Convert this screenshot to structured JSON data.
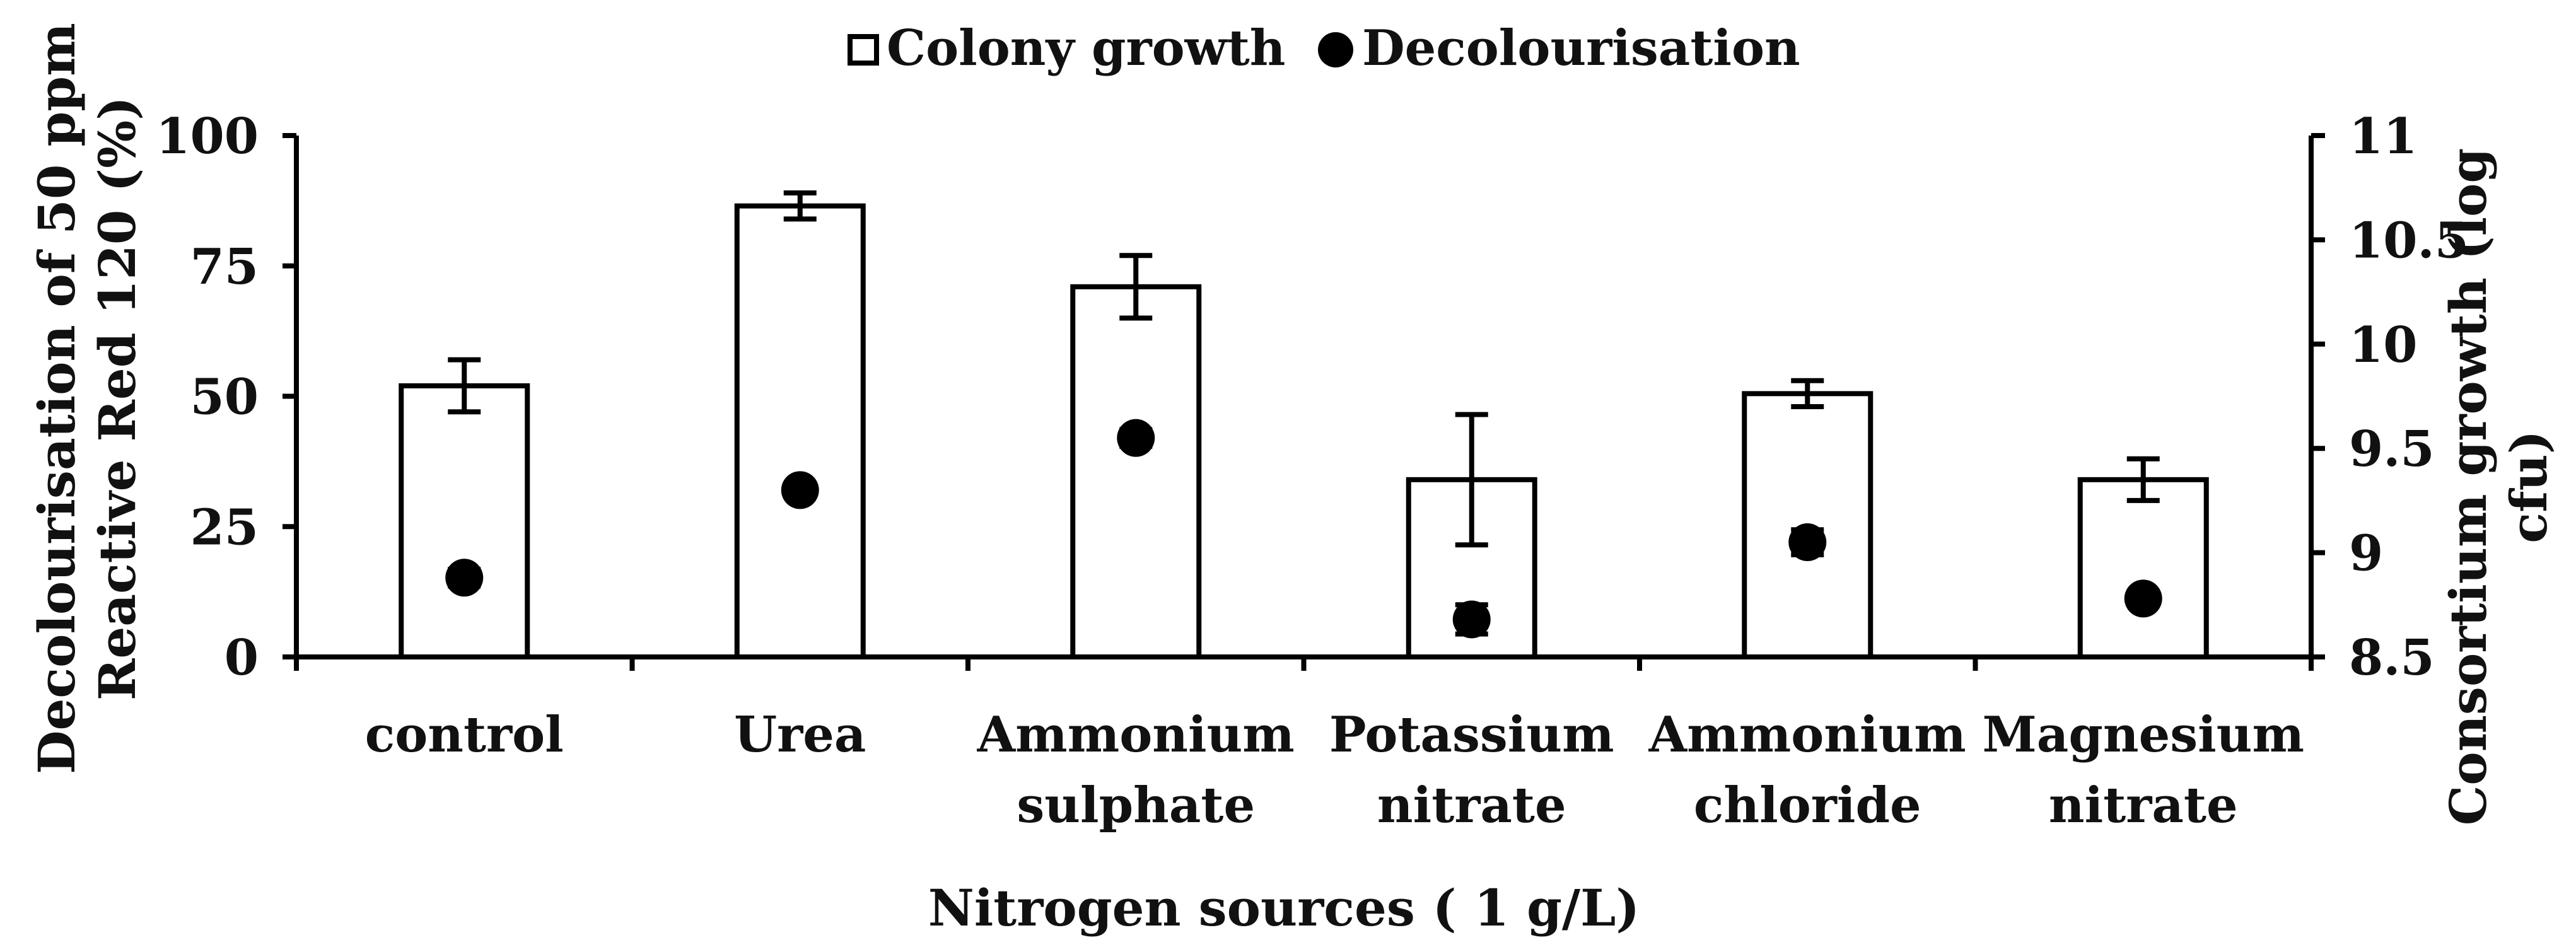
{
  "chart_data": {
    "type": "bar",
    "title": "",
    "categories": [
      [
        "control"
      ],
      [
        "Urea"
      ],
      [
        "Ammonium",
        "sulphate"
      ],
      [
        "Potassium",
        "nitrate"
      ],
      [
        "Ammonium",
        "chloride"
      ],
      [
        "Magnesium",
        "nitrate"
      ]
    ],
    "xlabel": "Nitrogen sources ( 1 g/L)",
    "ylabel_left": [
      "Decolourisation of 50 ppm",
      "Reactive Red 120 (%)"
    ],
    "ylabel_right": [
      "Consortium growth (log",
      "cfu)"
    ],
    "ylim_left": [
      0,
      100
    ],
    "ylim_right": [
      8.5,
      11
    ],
    "left_ticks": [
      "0",
      "25",
      "50",
      "75",
      "100"
    ],
    "right_ticks": [
      "8.5",
      "9",
      "9.5",
      "10",
      "10.5",
      "11"
    ],
    "legend": {
      "placement": "top-center",
      "items": [
        {
          "label": "Colony growth",
          "marker": "open-square"
        },
        {
          "label": "Decolourisation",
          "marker": "filled-circle"
        }
      ]
    },
    "series": [
      {
        "name": "Colony growth",
        "axis": "left",
        "kind": "bar",
        "values": [
          52,
          86.5,
          71,
          34,
          50.5,
          34
        ],
        "errors": [
          5,
          2.5,
          6,
          12.5,
          2.5,
          4
        ]
      },
      {
        "name": "Decolourisation",
        "axis": "right",
        "kind": "marker",
        "values": [
          8.88,
          9.3,
          9.55,
          8.68,
          9.05,
          8.78
        ],
        "errors": [
          0.04,
          0.03,
          0.04,
          0.07,
          0.06,
          0.03
        ]
      }
    ],
    "colors": {
      "bar_fill": "#ffffff",
      "bar_stroke": "#000000",
      "marker": "#000000",
      "axis": "#000000",
      "text": "#111111"
    }
  }
}
